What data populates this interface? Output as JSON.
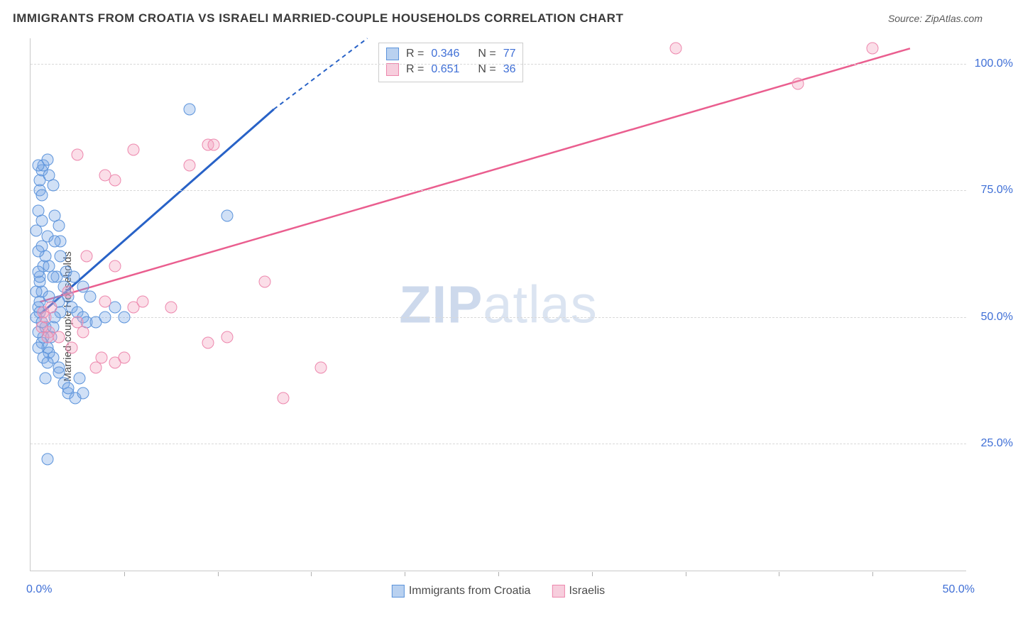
{
  "title": "IMMIGRANTS FROM CROATIA VS ISRAELI MARRIED-COUPLE HOUSEHOLDS CORRELATION CHART",
  "source_label": "Source: ZipAtlas.com",
  "ylabel": "Married-couple Households",
  "watermark_a": "ZIP",
  "watermark_b": "atlas",
  "chart": {
    "type": "scatter",
    "background_color": "#ffffff",
    "grid_color": "#d9d9d9",
    "axis_color": "#c9c9c9",
    "tick_label_color": "#3f6fd6",
    "axis_label_color": "#4a4a4a",
    "title_fontsize": 17,
    "tick_fontsize": 16,
    "marker_size": 15,
    "xlim": [
      0,
      50
    ],
    "ylim": [
      0,
      105
    ],
    "x_major_ticks": [
      0,
      50
    ],
    "x_minor_step": 5,
    "y_ticks": [
      25,
      50,
      75,
      100
    ],
    "x_tick_labels": {
      "0": "0.0%",
      "50": "50.0%"
    },
    "y_tick_labels": {
      "25": "25.0%",
      "50": "50.0%",
      "75": "75.0%",
      "100": "100.0%"
    }
  },
  "series": [
    {
      "name": "Immigrants from Croatia",
      "color_fill": "rgba(120,167,230,0.35)",
      "color_border": "#5b93db",
      "swatch_fill": "#b9d1f0",
      "swatch_border": "#5b93db",
      "R": "0.346",
      "N": "77",
      "trend": {
        "color": "#2862c7",
        "width": 3,
        "x1": 0.5,
        "y1": 50.5,
        "x2_solid": 13,
        "y2_solid": 91,
        "x2_dash": 18,
        "y2_dash": 105
      },
      "points": [
        [
          0.3,
          50
        ],
        [
          0.4,
          52
        ],
        [
          0.5,
          53
        ],
        [
          0.6,
          55
        ],
        [
          0.5,
          57
        ],
        [
          0.7,
          60
        ],
        [
          0.8,
          62
        ],
        [
          0.6,
          64
        ],
        [
          0.9,
          66
        ],
        [
          0.5,
          58
        ],
        [
          0.8,
          48
        ],
        [
          0.7,
          46
        ],
        [
          0.4,
          47
        ],
        [
          0.6,
          45
        ],
        [
          0.9,
          44
        ],
        [
          1.0,
          43
        ],
        [
          1.2,
          42
        ],
        [
          1.5,
          40
        ],
        [
          1.8,
          37
        ],
        [
          2.0,
          35
        ],
        [
          2.4,
          34
        ],
        [
          2.8,
          35
        ],
        [
          0.4,
          71
        ],
        [
          0.5,
          75
        ],
        [
          0.6,
          79
        ],
        [
          0.7,
          80
        ],
        [
          0.9,
          81
        ],
        [
          1.0,
          78
        ],
        [
          1.2,
          76
        ],
        [
          1.3,
          70
        ],
        [
          1.5,
          68
        ],
        [
          1.6,
          65
        ],
        [
          1.0,
          60
        ],
        [
          1.4,
          58
        ],
        [
          1.8,
          56
        ],
        [
          2.0,
          54
        ],
        [
          2.2,
          52
        ],
        [
          2.5,
          51
        ],
        [
          2.8,
          50
        ],
        [
          3.0,
          49
        ],
        [
          3.5,
          49
        ],
        [
          4.0,
          50
        ],
        [
          5.0,
          50
        ],
        [
          1.0,
          54
        ],
        [
          1.5,
          53
        ],
        [
          1.6,
          51
        ],
        [
          1.3,
          50
        ],
        [
          1.2,
          48
        ],
        [
          1.1,
          46
        ],
        [
          1.3,
          65
        ],
        [
          1.6,
          62
        ],
        [
          1.9,
          59
        ],
        [
          2.3,
          58
        ],
        [
          2.8,
          56
        ],
        [
          3.2,
          54
        ],
        [
          4.5,
          52
        ],
        [
          0.9,
          22
        ],
        [
          0.8,
          38
        ],
        [
          1.5,
          39
        ],
        [
          2.0,
          36
        ],
        [
          2.6,
          38
        ],
        [
          8.5,
          91
        ],
        [
          10.5,
          70
        ],
        [
          0.4,
          80
        ],
        [
          0.5,
          77
        ],
        [
          0.6,
          74
        ],
        [
          0.6,
          69
        ],
        [
          0.3,
          67
        ],
        [
          0.4,
          63
        ],
        [
          0.4,
          59
        ],
        [
          0.3,
          55
        ],
        [
          0.5,
          51
        ],
        [
          0.6,
          49
        ],
        [
          0.4,
          44
        ],
        [
          0.7,
          42
        ],
        [
          0.9,
          41
        ],
        [
          1.2,
          58
        ]
      ]
    },
    {
      "name": "Israelis",
      "color_fill": "rgba(244,160,190,0.35)",
      "color_border": "#ed87ad",
      "swatch_fill": "#f7cedd",
      "swatch_border": "#ed87ad",
      "R": "0.651",
      "N": "36",
      "trend": {
        "color": "#ea5e8f",
        "width": 2.5,
        "x1": 0.5,
        "y1": 53,
        "x2_solid": 47,
        "y2_solid": 103,
        "x2_dash": 47,
        "y2_dash": 103
      },
      "points": [
        [
          0.6,
          48
        ],
        [
          0.8,
          50
        ],
        [
          1.0,
          47
        ],
        [
          0.9,
          46
        ],
        [
          0.7,
          51
        ],
        [
          1.1,
          52
        ],
        [
          1.5,
          46
        ],
        [
          2.0,
          55
        ],
        [
          2.2,
          44
        ],
        [
          2.5,
          49
        ],
        [
          2.8,
          47
        ],
        [
          3.5,
          40
        ],
        [
          3.8,
          42
        ],
        [
          4.0,
          53
        ],
        [
          4.5,
          41
        ],
        [
          5.0,
          42
        ],
        [
          5.5,
          52
        ],
        [
          6.0,
          53
        ],
        [
          7.5,
          52
        ],
        [
          9.5,
          45
        ],
        [
          10.5,
          46
        ],
        [
          4.0,
          78
        ],
        [
          4.5,
          77
        ],
        [
          2.5,
          82
        ],
        [
          5.5,
          83
        ],
        [
          8.5,
          80
        ],
        [
          9.5,
          84
        ],
        [
          9.8,
          84
        ],
        [
          12.5,
          57
        ],
        [
          13.5,
          34
        ],
        [
          15.5,
          40
        ],
        [
          34.5,
          103
        ],
        [
          41.0,
          96
        ],
        [
          45.0,
          103
        ],
        [
          3.0,
          62
        ],
        [
          4.5,
          60
        ]
      ]
    }
  ],
  "legend_r_label": "R =",
  "legend_n_label": "N ="
}
